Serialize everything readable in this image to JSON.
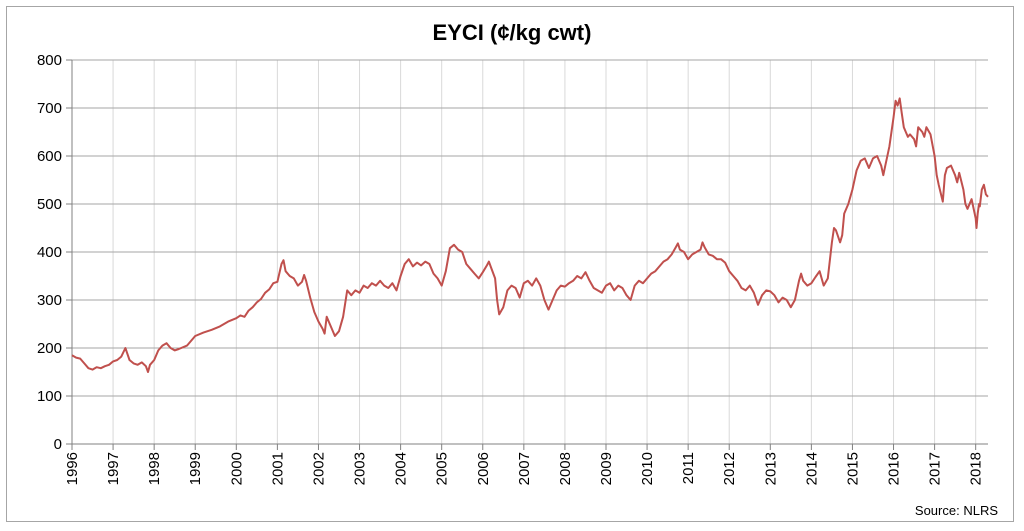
{
  "chart_data": {
    "type": "line",
    "title": "EYCI (¢/kg cwt)",
    "xlabel": "",
    "ylabel": "",
    "ylim": [
      0,
      800
    ],
    "y_ticks": [
      0,
      100,
      200,
      300,
      400,
      500,
      600,
      700,
      800
    ],
    "xlim": [
      1996,
      2018.3
    ],
    "x_ticks": [
      "1996",
      "1997",
      "1998",
      "1999",
      "2000",
      "2001",
      "2002",
      "2003",
      "2004",
      "2005",
      "2006",
      "2007",
      "2008",
      "2009",
      "2010",
      "2011",
      "2012",
      "2013",
      "2014",
      "2015",
      "2016",
      "2017",
      "2018"
    ],
    "grid": {
      "horizontal": true,
      "vertical": true
    },
    "line_color": "#c0504d",
    "series": [
      {
        "values": [
          [
            1996.0,
            185
          ],
          [
            1996.1,
            180
          ],
          [
            1996.2,
            178
          ],
          [
            1996.3,
            168
          ],
          [
            1996.4,
            158
          ],
          [
            1996.5,
            155
          ],
          [
            1996.6,
            160
          ],
          [
            1996.7,
            158
          ],
          [
            1996.8,
            162
          ],
          [
            1996.9,
            165
          ],
          [
            1997.0,
            172
          ],
          [
            1997.1,
            175
          ],
          [
            1997.2,
            182
          ],
          [
            1997.3,
            200
          ],
          [
            1997.4,
            175
          ],
          [
            1997.5,
            168
          ],
          [
            1997.6,
            165
          ],
          [
            1997.7,
            170
          ],
          [
            1997.8,
            162
          ],
          [
            1997.85,
            150
          ],
          [
            1997.9,
            165
          ],
          [
            1998.0,
            175
          ],
          [
            1998.1,
            195
          ],
          [
            1998.2,
            205
          ],
          [
            1998.3,
            210
          ],
          [
            1998.4,
            200
          ],
          [
            1998.5,
            195
          ],
          [
            1998.6,
            198
          ],
          [
            1998.8,
            205
          ],
          [
            1999.0,
            225
          ],
          [
            1999.2,
            232
          ],
          [
            1999.4,
            238
          ],
          [
            1999.6,
            245
          ],
          [
            1999.8,
            255
          ],
          [
            2000.0,
            262
          ],
          [
            2000.1,
            268
          ],
          [
            2000.2,
            265
          ],
          [
            2000.3,
            278
          ],
          [
            2000.4,
            285
          ],
          [
            2000.5,
            295
          ],
          [
            2000.6,
            302
          ],
          [
            2000.7,
            315
          ],
          [
            2000.8,
            322
          ],
          [
            2000.9,
            335
          ],
          [
            2001.0,
            338
          ],
          [
            2001.1,
            375
          ],
          [
            2001.15,
            383
          ],
          [
            2001.2,
            360
          ],
          [
            2001.3,
            350
          ],
          [
            2001.4,
            345
          ],
          [
            2001.5,
            330
          ],
          [
            2001.6,
            338
          ],
          [
            2001.65,
            352
          ],
          [
            2001.7,
            340
          ],
          [
            2001.8,
            305
          ],
          [
            2001.9,
            275
          ],
          [
            2002.0,
            255
          ],
          [
            2002.1,
            240
          ],
          [
            2002.15,
            230
          ],
          [
            2002.2,
            265
          ],
          [
            2002.3,
            245
          ],
          [
            2002.4,
            225
          ],
          [
            2002.5,
            235
          ],
          [
            2002.6,
            265
          ],
          [
            2002.7,
            320
          ],
          [
            2002.8,
            310
          ],
          [
            2002.9,
            320
          ],
          [
            2003.0,
            315
          ],
          [
            2003.1,
            330
          ],
          [
            2003.2,
            325
          ],
          [
            2003.3,
            335
          ],
          [
            2003.4,
            330
          ],
          [
            2003.5,
            340
          ],
          [
            2003.6,
            330
          ],
          [
            2003.7,
            325
          ],
          [
            2003.8,
            335
          ],
          [
            2003.9,
            320
          ],
          [
            2004.0,
            350
          ],
          [
            2004.1,
            375
          ],
          [
            2004.2,
            385
          ],
          [
            2004.3,
            370
          ],
          [
            2004.4,
            378
          ],
          [
            2004.5,
            372
          ],
          [
            2004.6,
            380
          ],
          [
            2004.7,
            375
          ],
          [
            2004.8,
            355
          ],
          [
            2004.9,
            345
          ],
          [
            2005.0,
            330
          ],
          [
            2005.1,
            360
          ],
          [
            2005.2,
            408
          ],
          [
            2005.3,
            415
          ],
          [
            2005.4,
            405
          ],
          [
            2005.5,
            400
          ],
          [
            2005.6,
            375
          ],
          [
            2005.7,
            365
          ],
          [
            2005.8,
            355
          ],
          [
            2005.9,
            345
          ],
          [
            2006.0,
            358
          ],
          [
            2006.1,
            372
          ],
          [
            2006.15,
            380
          ],
          [
            2006.2,
            368
          ],
          [
            2006.3,
            345
          ],
          [
            2006.35,
            300
          ],
          [
            2006.4,
            270
          ],
          [
            2006.5,
            285
          ],
          [
            2006.6,
            320
          ],
          [
            2006.7,
            330
          ],
          [
            2006.8,
            325
          ],
          [
            2006.9,
            305
          ],
          [
            2007.0,
            335
          ],
          [
            2007.1,
            340
          ],
          [
            2007.2,
            330
          ],
          [
            2007.3,
            345
          ],
          [
            2007.4,
            330
          ],
          [
            2007.5,
            300
          ],
          [
            2007.6,
            280
          ],
          [
            2007.7,
            300
          ],
          [
            2007.8,
            320
          ],
          [
            2007.9,
            330
          ],
          [
            2008.0,
            328
          ],
          [
            2008.1,
            335
          ],
          [
            2008.2,
            340
          ],
          [
            2008.3,
            350
          ],
          [
            2008.4,
            345
          ],
          [
            2008.5,
            358
          ],
          [
            2008.6,
            340
          ],
          [
            2008.7,
            325
          ],
          [
            2008.8,
            320
          ],
          [
            2008.9,
            315
          ],
          [
            2009.0,
            330
          ],
          [
            2009.1,
            335
          ],
          [
            2009.2,
            320
          ],
          [
            2009.3,
            330
          ],
          [
            2009.4,
            325
          ],
          [
            2009.5,
            310
          ],
          [
            2009.6,
            300
          ],
          [
            2009.7,
            330
          ],
          [
            2009.8,
            340
          ],
          [
            2009.9,
            335
          ],
          [
            2010.0,
            345
          ],
          [
            2010.1,
            355
          ],
          [
            2010.2,
            360
          ],
          [
            2010.3,
            370
          ],
          [
            2010.4,
            380
          ],
          [
            2010.5,
            385
          ],
          [
            2010.6,
            395
          ],
          [
            2010.7,
            410
          ],
          [
            2010.75,
            418
          ],
          [
            2010.8,
            405
          ],
          [
            2010.9,
            400
          ],
          [
            2011.0,
            385
          ],
          [
            2011.1,
            395
          ],
          [
            2011.2,
            400
          ],
          [
            2011.3,
            405
          ],
          [
            2011.35,
            420
          ],
          [
            2011.4,
            410
          ],
          [
            2011.5,
            395
          ],
          [
            2011.6,
            392
          ],
          [
            2011.7,
            385
          ],
          [
            2011.8,
            385
          ],
          [
            2011.9,
            378
          ],
          [
            2012.0,
            360
          ],
          [
            2012.1,
            350
          ],
          [
            2012.2,
            340
          ],
          [
            2012.3,
            325
          ],
          [
            2012.4,
            320
          ],
          [
            2012.5,
            330
          ],
          [
            2012.6,
            315
          ],
          [
            2012.7,
            290
          ],
          [
            2012.8,
            310
          ],
          [
            2012.9,
            320
          ],
          [
            2013.0,
            318
          ],
          [
            2013.1,
            310
          ],
          [
            2013.2,
            295
          ],
          [
            2013.3,
            305
          ],
          [
            2013.4,
            300
          ],
          [
            2013.5,
            285
          ],
          [
            2013.6,
            300
          ],
          [
            2013.7,
            340
          ],
          [
            2013.75,
            355
          ],
          [
            2013.8,
            340
          ],
          [
            2013.9,
            330
          ],
          [
            2014.0,
            335
          ],
          [
            2014.1,
            348
          ],
          [
            2014.2,
            360
          ],
          [
            2014.3,
            330
          ],
          [
            2014.4,
            345
          ],
          [
            2014.5,
            420
          ],
          [
            2014.55,
            450
          ],
          [
            2014.6,
            445
          ],
          [
            2014.7,
            420
          ],
          [
            2014.75,
            435
          ],
          [
            2014.8,
            480
          ],
          [
            2014.9,
            500
          ],
          [
            2015.0,
            530
          ],
          [
            2015.1,
            570
          ],
          [
            2015.2,
            590
          ],
          [
            2015.3,
            595
          ],
          [
            2015.4,
            575
          ],
          [
            2015.5,
            595
          ],
          [
            2015.6,
            600
          ],
          [
            2015.7,
            580
          ],
          [
            2015.75,
            560
          ],
          [
            2015.8,
            580
          ],
          [
            2015.9,
            620
          ],
          [
            2016.0,
            680
          ],
          [
            2016.05,
            715
          ],
          [
            2016.1,
            705
          ],
          [
            2016.15,
            720
          ],
          [
            2016.2,
            690
          ],
          [
            2016.25,
            660
          ],
          [
            2016.3,
            650
          ],
          [
            2016.35,
            640
          ],
          [
            2016.4,
            645
          ],
          [
            2016.5,
            635
          ],
          [
            2016.55,
            620
          ],
          [
            2016.6,
            660
          ],
          [
            2016.7,
            650
          ],
          [
            2016.75,
            640
          ],
          [
            2016.8,
            660
          ],
          [
            2016.9,
            645
          ],
          [
            2017.0,
            600
          ],
          [
            2017.05,
            560
          ],
          [
            2017.1,
            540
          ],
          [
            2017.2,
            505
          ],
          [
            2017.25,
            560
          ],
          [
            2017.3,
            575
          ],
          [
            2017.4,
            580
          ],
          [
            2017.5,
            560
          ],
          [
            2017.55,
            545
          ],
          [
            2017.6,
            565
          ],
          [
            2017.7,
            530
          ],
          [
            2017.75,
            500
          ],
          [
            2017.8,
            490
          ],
          [
            2017.9,
            510
          ],
          [
            2018.0,
            470
          ],
          [
            2018.02,
            450
          ],
          [
            2018.05,
            480
          ],
          [
            2018.08,
            500
          ],
          [
            2018.1,
            495
          ],
          [
            2018.15,
            530
          ],
          [
            2018.2,
            540
          ],
          [
            2018.25,
            520
          ],
          [
            2018.3,
            515
          ]
        ]
      }
    ],
    "source": "Source: NLRS"
  }
}
